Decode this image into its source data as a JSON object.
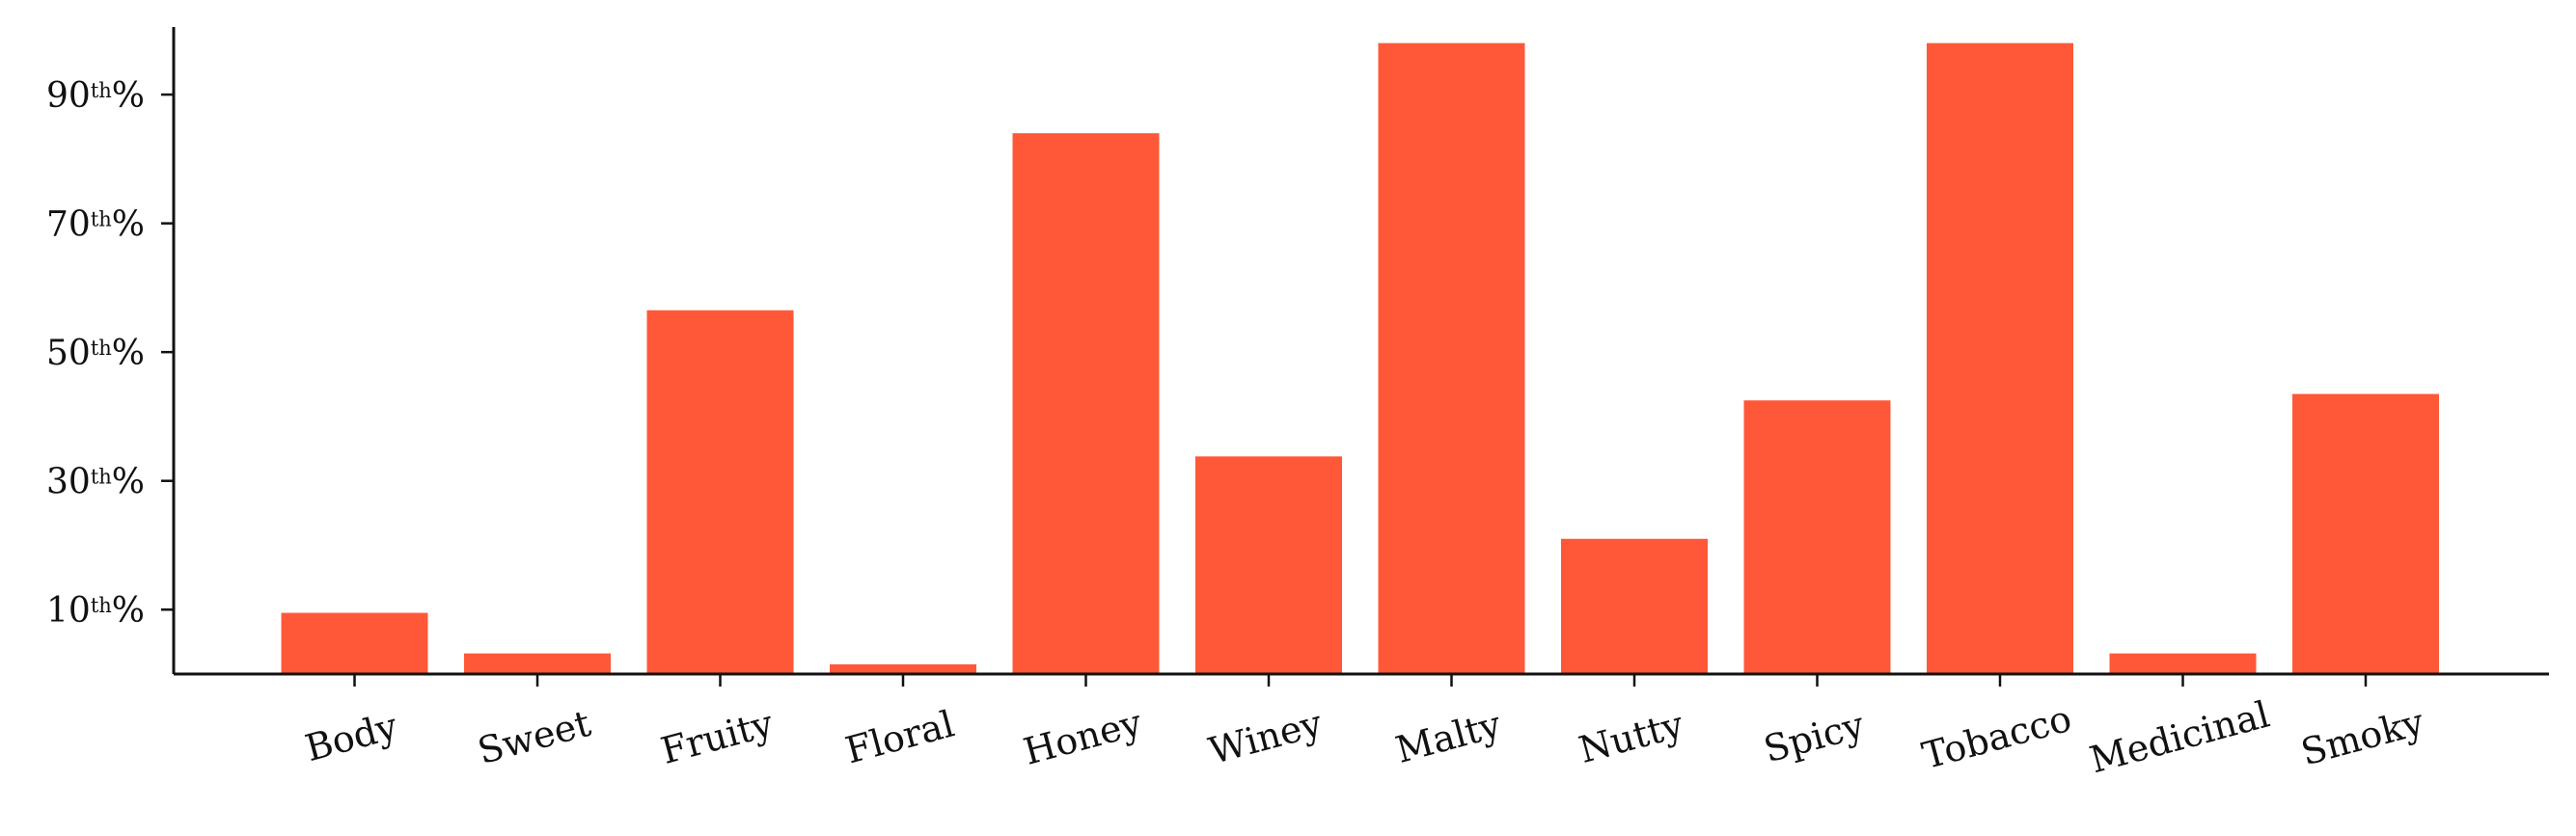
{
  "chart_data": {
    "type": "bar",
    "categories": [
      "Body",
      "Sweet",
      "Fruity",
      "Floral",
      "Honey",
      "Winey",
      "Malty",
      "Nutty",
      "Spicy",
      "Tobacco",
      "Medicinal",
      "Smoky"
    ],
    "series": [
      {
        "values": [
          9.5,
          3.2,
          56.5,
          1.5,
          84,
          33.8,
          98,
          21,
          42.5,
          98,
          3.2,
          43.5
        ]
      }
    ],
    "yticks": [
      {
        "value": 10,
        "num": "10",
        "sup": "th",
        "suffix": "%"
      },
      {
        "value": 30,
        "num": "30",
        "sup": "th",
        "suffix": "%"
      },
      {
        "value": 50,
        "num": "50",
        "sup": "th",
        "suffix": "%"
      },
      {
        "value": 70,
        "num": "70",
        "sup": "th",
        "suffix": "%"
      },
      {
        "value": 90,
        "num": "90",
        "sup": "th",
        "suffix": "%"
      }
    ],
    "ylim": [
      0,
      100.5
    ],
    "bar_color": "#ff5838",
    "title": "",
    "xlabel": "",
    "ylabel": "",
    "grid": false,
    "legend": "none"
  }
}
